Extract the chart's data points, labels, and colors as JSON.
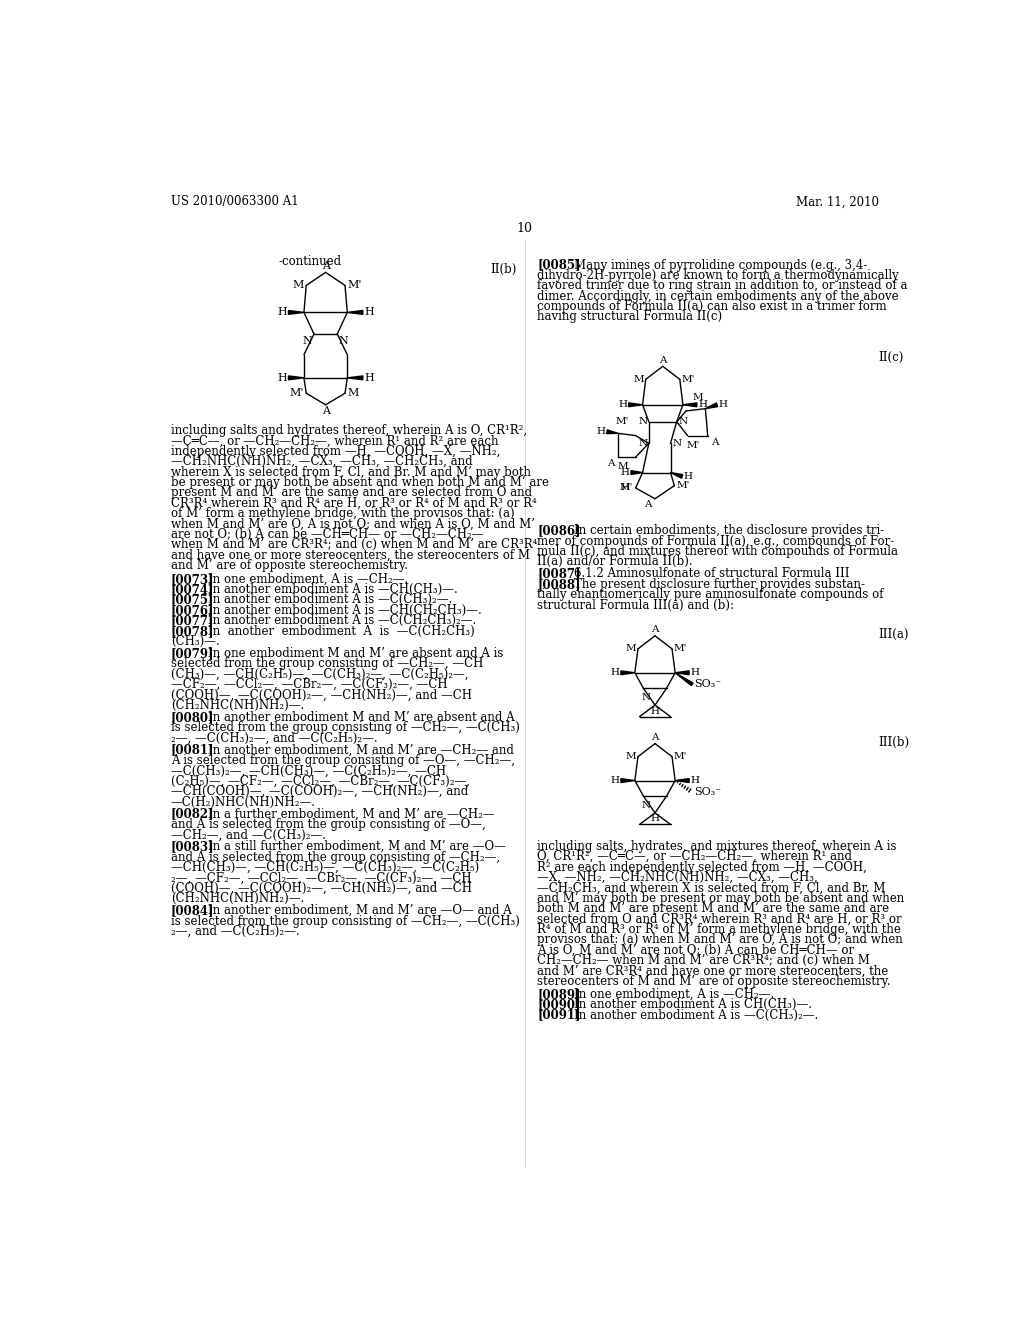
{
  "bg_color": "#ffffff",
  "header_left": "US 2010/0063300 A1",
  "header_right": "Mar. 11, 2010",
  "page_number": "10"
}
